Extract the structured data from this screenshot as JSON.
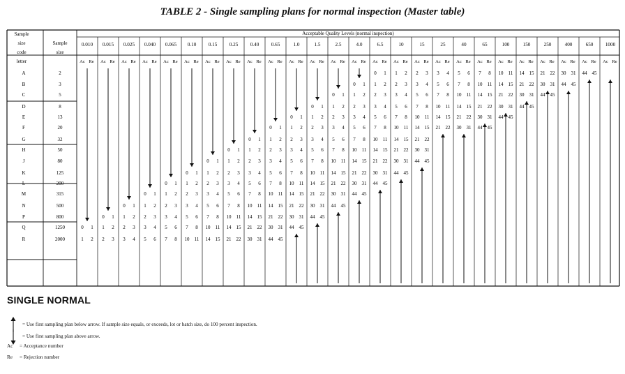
{
  "title": "TABLE 2 - Single sampling plans for normal inspection (Master table)",
  "headers": {
    "code_letter": [
      "Sample",
      "size",
      "code",
      "letter"
    ],
    "sample_size": [
      "Sample",
      "size"
    ],
    "aql_title": "Acceptable Quality Levels (normal inspection)",
    "ac": "Ac",
    "re": "Re"
  },
  "aql_levels": [
    "0.010",
    "0.015",
    "0.025",
    "0.040",
    "0.065",
    "0.10",
    "0.15",
    "0.25",
    "0.40",
    "0.65",
    "1.0",
    "1.5",
    "2.5",
    "4.0",
    "6.5",
    "10",
    "15",
    "25",
    "40",
    "65",
    "100",
    "150",
    "250",
    "400",
    "650",
    "1000"
  ],
  "rows": [
    {
      "letter": "A",
      "size": "2"
    },
    {
      "letter": "B",
      "size": "3"
    },
    {
      "letter": "C",
      "size": "5"
    },
    {
      "letter": "D",
      "size": "8"
    },
    {
      "letter": "E",
      "size": "13"
    },
    {
      "letter": "F",
      "size": "20"
    },
    {
      "letter": "G",
      "size": "32"
    },
    {
      "letter": "H",
      "size": "50"
    },
    {
      "letter": "J",
      "size": "80"
    },
    {
      "letter": "K",
      "size": "125"
    },
    {
      "letter": "L",
      "size": "200"
    },
    {
      "letter": "M",
      "size": "315"
    },
    {
      "letter": "N",
      "size": "500"
    },
    {
      "letter": "P",
      "size": "800"
    },
    {
      "letter": "Q",
      "size": "1250"
    },
    {
      "letter": "R",
      "size": "2000"
    }
  ],
  "ac_re_pairs": [
    "0 1",
    "1 2",
    "2 3",
    "3 4",
    "5 6",
    "7 8",
    "10 11",
    "14 15",
    "21 22",
    "30 31",
    "44 45"
  ],
  "footer": {
    "heading": "SINGLE NORMAL",
    "legend": [
      {
        "symbol": "down-arrow-icon",
        "text": "=   Use first sampling plan below arrow. If sample size equals, or exceeds, lot or batch size, do 100 percent inspection."
      },
      {
        "symbol": "up-arrow-icon",
        "text": "=   Use first sampling plan above arrow."
      },
      {
        "symbol": "Ac",
        "text": "=   Acceptance number"
      },
      {
        "symbol": "Re",
        "text": "=   Rejection number"
      }
    ]
  }
}
